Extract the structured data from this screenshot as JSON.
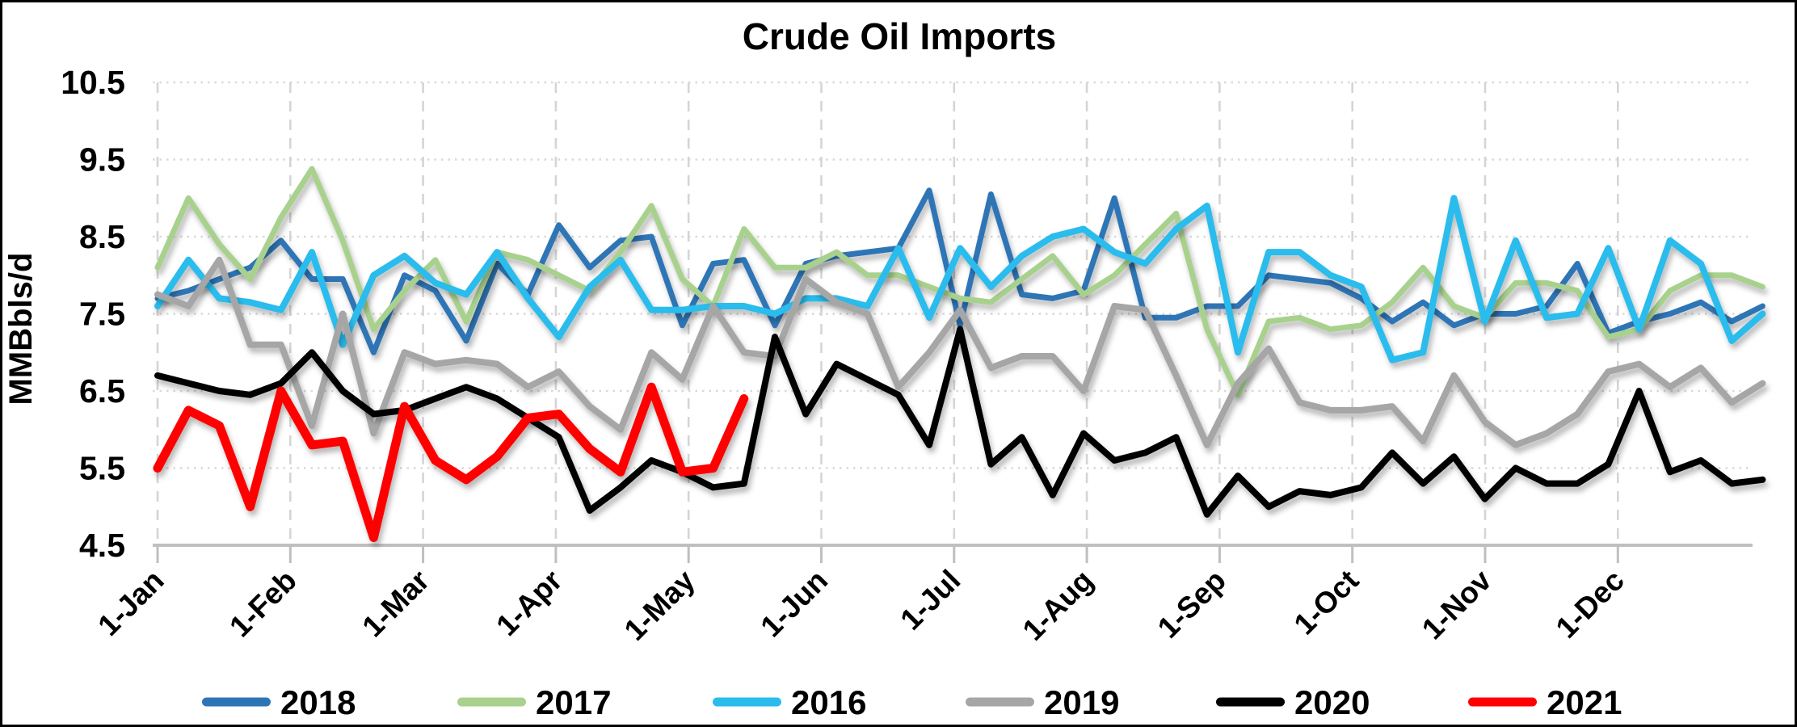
{
  "title": "Crude Oil Imports",
  "y_axis": {
    "label": "MMBbls/d",
    "ticks": [
      "10.5",
      "9.5",
      "8.5",
      "7.5",
      "6.5",
      "5.5",
      "4.5"
    ],
    "min": 4.5,
    "max": 10.5,
    "step": 1.0
  },
  "x_axis": {
    "months": [
      "1-Jan",
      "1-Feb",
      "1-Mar",
      "1-Apr",
      "1-May",
      "1-Jun",
      "1-Jul",
      "1-Aug",
      "1-Sep",
      "1-Oct",
      "1-Nov",
      "1-Dec"
    ]
  },
  "legend": {
    "items": [
      "2018",
      "2017",
      "2016",
      "2019",
      "2020",
      "2021"
    ]
  },
  "chart_data": {
    "type": "line",
    "title": "Crude Oil Imports",
    "ylabel": "MMBbls/d",
    "ylim": [
      4.5,
      10.5
    ],
    "grid": true,
    "legend_position": "bottom",
    "x_unit": "weekly data points, week 0 = 1-Jan, 53 weeks per year",
    "series": [
      {
        "name": "2018",
        "color": "#2E75B6",
        "width": 7,
        "values": [
          7.7,
          7.8,
          7.95,
          8.1,
          8.45,
          7.95,
          7.95,
          7.0,
          8.0,
          7.8,
          7.15,
          8.15,
          7.75,
          8.65,
          8.1,
          8.45,
          8.5,
          7.35,
          8.15,
          8.2,
          7.35,
          8.15,
          8.25,
          8.3,
          8.35,
          9.1,
          7.35,
          9.05,
          7.75,
          7.7,
          7.8,
          9.0,
          7.45,
          7.45,
          7.6,
          7.6,
          8.0,
          7.95,
          7.9,
          7.7,
          7.4,
          7.65,
          7.35,
          7.5,
          7.5,
          7.6,
          8.15,
          7.25,
          7.4,
          7.5,
          7.65,
          7.4,
          7.6
        ]
      },
      {
        "name": "2017",
        "color": "#A9D18E",
        "width": 7,
        "values": [
          8.1,
          9.0,
          8.4,
          7.95,
          8.75,
          9.38,
          8.45,
          7.3,
          7.8,
          8.2,
          7.4,
          8.3,
          8.2,
          8.0,
          7.8,
          8.3,
          8.9,
          7.95,
          7.6,
          8.6,
          8.1,
          8.1,
          8.3,
          8.0,
          8.0,
          7.85,
          7.7,
          7.65,
          7.95,
          8.25,
          7.75,
          8.0,
          8.4,
          8.8,
          7.3,
          6.45,
          7.4,
          7.45,
          7.3,
          7.35,
          7.65,
          8.1,
          7.6,
          7.45,
          7.9,
          7.9,
          7.8,
          7.2,
          7.3,
          7.8,
          8.0,
          8.0,
          7.85
        ]
      },
      {
        "name": "2016",
        "color": "#2BBCEC",
        "width": 8,
        "values": [
          7.6,
          8.2,
          7.7,
          7.65,
          7.55,
          8.3,
          7.1,
          8.0,
          8.25,
          7.9,
          7.75,
          8.3,
          7.7,
          7.2,
          7.85,
          8.2,
          7.55,
          7.55,
          7.6,
          7.6,
          7.5,
          7.7,
          7.7,
          7.6,
          8.35,
          7.45,
          8.35,
          7.85,
          8.25,
          8.5,
          8.6,
          8.3,
          8.15,
          8.6,
          8.9,
          7.0,
          8.3,
          8.3,
          8.0,
          7.85,
          6.9,
          7.0,
          9.0,
          7.4,
          8.45,
          7.45,
          7.5,
          8.35,
          7.3,
          8.45,
          8.15,
          7.15,
          7.5
        ]
      },
      {
        "name": "2019",
        "color": "#A6A6A6",
        "width": 8,
        "values": [
          7.75,
          7.6,
          8.2,
          7.1,
          7.1,
          6.05,
          7.5,
          5.95,
          7.0,
          6.85,
          6.9,
          6.85,
          6.55,
          6.75,
          6.3,
          6.0,
          7.0,
          6.65,
          7.6,
          7.0,
          6.95,
          7.95,
          7.65,
          7.5,
          6.55,
          7.0,
          7.55,
          6.8,
          6.95,
          6.95,
          6.5,
          7.6,
          7.55,
          6.7,
          5.8,
          6.6,
          7.05,
          6.35,
          6.25,
          6.25,
          6.3,
          5.85,
          6.7,
          6.1,
          5.8,
          5.95,
          6.2,
          6.75,
          6.85,
          6.55,
          6.8,
          6.35,
          6.6
        ]
      },
      {
        "name": "2020",
        "color": "#000000",
        "width": 8,
        "values": [
          6.7,
          6.6,
          6.5,
          6.45,
          6.6,
          7.0,
          6.5,
          6.2,
          6.25,
          6.4,
          6.55,
          6.4,
          6.15,
          5.9,
          4.95,
          5.25,
          5.6,
          5.45,
          5.25,
          5.3,
          7.2,
          6.2,
          6.85,
          6.65,
          6.45,
          5.8,
          7.3,
          5.55,
          5.9,
          5.15,
          5.95,
          5.6,
          5.7,
          5.9,
          4.9,
          5.4,
          5.0,
          5.2,
          5.15,
          5.25,
          5.7,
          5.3,
          5.65,
          5.1,
          5.5,
          5.3,
          5.3,
          5.55,
          6.5,
          5.45,
          5.6,
          5.3,
          5.35
        ]
      },
      {
        "name": "2021",
        "color": "#FF0000",
        "width": 11,
        "values": [
          5.5,
          6.25,
          6.05,
          5.0,
          6.5,
          5.8,
          5.85,
          4.6,
          6.3,
          5.6,
          5.35,
          5.65,
          6.15,
          6.2,
          5.75,
          5.45,
          6.55,
          5.45,
          5.5,
          6.4
        ]
      }
    ]
  }
}
